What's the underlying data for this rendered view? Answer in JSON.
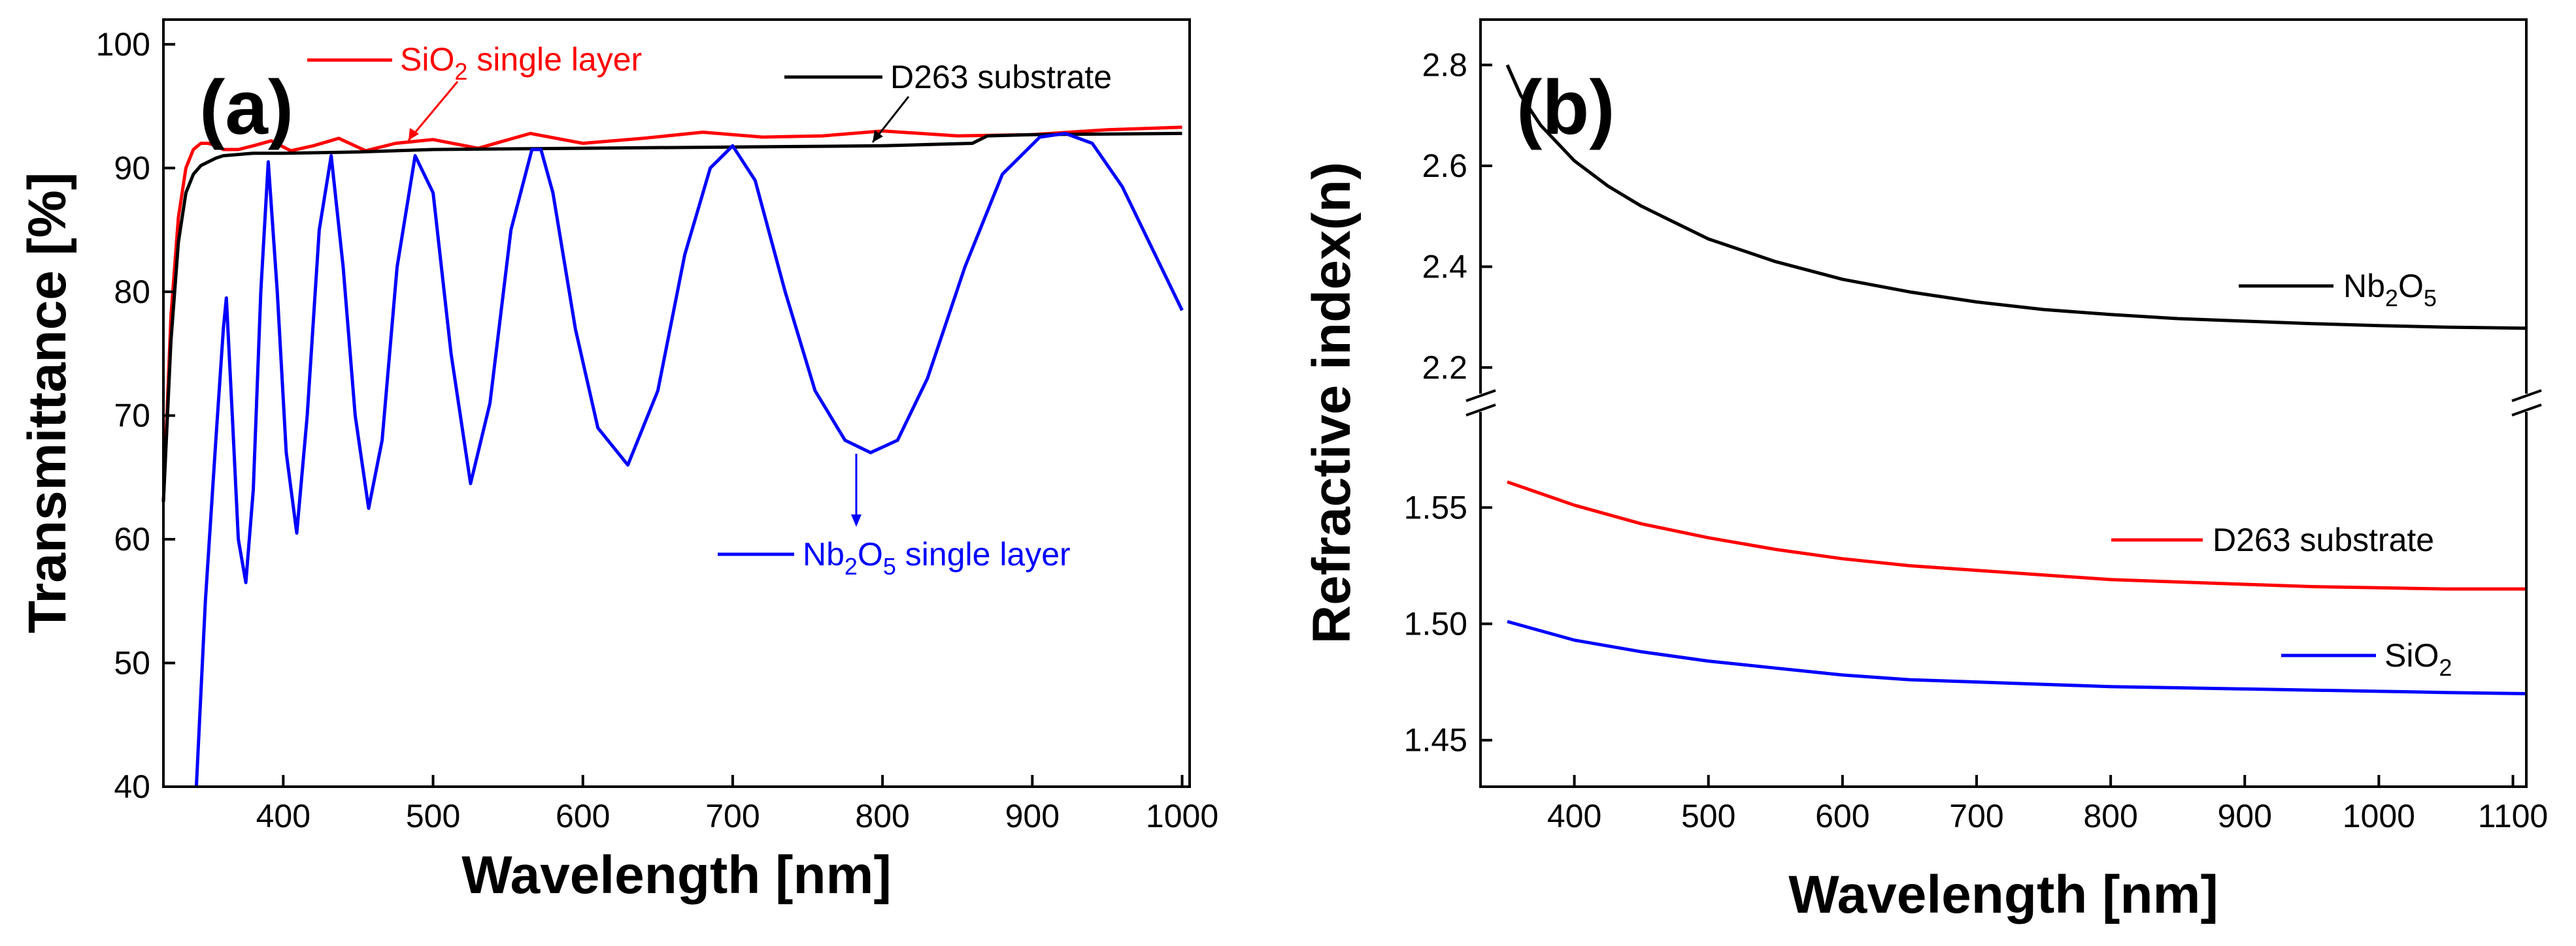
{
  "chart_data": [
    {
      "type": "line",
      "panel_label": "(a)",
      "xlabel": "Wavelength [nm]",
      "ylabel": "Transmittance [%]",
      "xlim": [
        320,
        1005
      ],
      "ylim": [
        40,
        102
      ],
      "xticks": [
        400,
        500,
        600,
        700,
        800,
        900,
        1000
      ],
      "yticks": [
        40,
        50,
        60,
        70,
        80,
        90,
        100
      ],
      "grid": false,
      "series": [
        {
          "name": "SiO2 single layer",
          "label_base": "SiO",
          "label_sub": "2",
          "label_suffix": " single layer",
          "color": "#ff0000",
          "x": [
            320,
            325,
            330,
            335,
            340,
            345,
            350,
            355,
            360,
            370,
            380,
            392,
            405,
            420,
            437,
            455,
            475,
            500,
            530,
            565,
            600,
            640,
            680,
            720,
            760,
            800,
            850,
            900,
            950,
            1000
          ],
          "y": [
            63,
            78,
            86,
            90,
            91.5,
            92,
            92,
            91.8,
            91.5,
            91.5,
            91.8,
            92.2,
            91.4,
            91.8,
            92.4,
            91.4,
            92,
            92.3,
            91.6,
            92.8,
            92,
            92.4,
            92.9,
            92.5,
            92.6,
            93,
            92.6,
            92.7,
            93.1,
            93.3
          ]
        },
        {
          "name": "D263 substrate",
          "label": "D263 substrate",
          "color": "#000000",
          "x": [
            320,
            325,
            330,
            335,
            340,
            345,
            350,
            355,
            360,
            370,
            380,
            400,
            450,
            500,
            600,
            700,
            800,
            860,
            870,
            900,
            1000
          ],
          "y": [
            63,
            76,
            84,
            88,
            89.5,
            90.2,
            90.5,
            90.8,
            91,
            91.1,
            91.2,
            91.2,
            91.3,
            91.5,
            91.6,
            91.7,
            91.8,
            92,
            92.6,
            92.7,
            92.8
          ]
        },
        {
          "name": "Nb2O5 single layer",
          "label_base": "Nb",
          "label_sub": "2",
          "label_mid": "O",
          "label_sub2": "5",
          "label_suffix": " single layer",
          "color": "#0000ff",
          "x": [
            342,
            348,
            355,
            360,
            362,
            366,
            370,
            375,
            380,
            385,
            390,
            396,
            402,
            409,
            416,
            424,
            432,
            440,
            448,
            457,
            466,
            476,
            488,
            500,
            512,
            525,
            538,
            552,
            566,
            572,
            580,
            595,
            610,
            630,
            650,
            668,
            685,
            700,
            715,
            735,
            755,
            775,
            792,
            810,
            830,
            855,
            880,
            905,
            922,
            940,
            960,
            980,
            1000
          ],
          "y": [
            40,
            55,
            68,
            77,
            79.5,
            70,
            60,
            56.5,
            64,
            80,
            90.5,
            80,
            67,
            60.5,
            70,
            85,
            91,
            82,
            70,
            62.5,
            68,
            82,
            91,
            88,
            75,
            64.5,
            71,
            85,
            91.5,
            91.5,
            88,
            77,
            69,
            66,
            72,
            83,
            90,
            91.8,
            89,
            80,
            72,
            68,
            67,
            68,
            73,
            82,
            89.5,
            92.5,
            92.8,
            92,
            88.5,
            83.5,
            78.5
          ]
        }
      ]
    },
    {
      "type": "line",
      "panel_label": "(b)",
      "xlabel": "Wavelength [nm]",
      "ylabel": "Refractive index(n)",
      "xlim": [
        330,
        1110
      ],
      "axis_break": true,
      "upper_ylim": [
        2.13,
        2.89
      ],
      "lower_ylim": [
        1.43,
        1.595
      ],
      "xticks": [
        400,
        500,
        600,
        700,
        800,
        900,
        1000,
        1100
      ],
      "upper_yticks": [
        2.2,
        2.4,
        2.6,
        2.8
      ],
      "lower_yticks": [
        1.45,
        1.5,
        1.55
      ],
      "grid": false,
      "series": [
        {
          "name": "Nb2O5",
          "segment": "upper",
          "label_base": "Nb",
          "label_sub": "2",
          "label_mid": "O",
          "label_sub2": "5",
          "color": "#000000",
          "x": [
            350,
            360,
            375,
            400,
            425,
            450,
            500,
            550,
            600,
            650,
            700,
            750,
            800,
            850,
            900,
            950,
            1000,
            1050,
            1110
          ],
          "y": [
            2.8,
            2.74,
            2.68,
            2.61,
            2.56,
            2.52,
            2.455,
            2.41,
            2.375,
            2.35,
            2.33,
            2.315,
            2.305,
            2.297,
            2.292,
            2.287,
            2.283,
            2.28,
            2.278
          ]
        },
        {
          "name": "D263 substrate",
          "segment": "lower",
          "label": "D263 substrate",
          "color": "#ff0000",
          "x": [
            350,
            400,
            450,
            500,
            550,
            600,
            650,
            700,
            750,
            800,
            850,
            900,
            950,
            1000,
            1050,
            1110
          ],
          "y": [
            1.561,
            1.551,
            1.543,
            1.537,
            1.532,
            1.528,
            1.525,
            1.523,
            1.521,
            1.519,
            1.518,
            1.517,
            1.516,
            1.5155,
            1.515,
            1.515
          ]
        },
        {
          "name": "SiO2",
          "segment": "lower",
          "label_base": "SiO",
          "label_sub": "2",
          "color": "#0000ff",
          "x": [
            350,
            400,
            450,
            500,
            550,
            600,
            650,
            700,
            750,
            800,
            850,
            900,
            950,
            1000,
            1050,
            1110
          ],
          "y": [
            1.501,
            1.493,
            1.488,
            1.484,
            1.481,
            1.478,
            1.476,
            1.475,
            1.474,
            1.473,
            1.4725,
            1.472,
            1.4715,
            1.471,
            1.4705,
            1.47
          ]
        }
      ]
    }
  ]
}
